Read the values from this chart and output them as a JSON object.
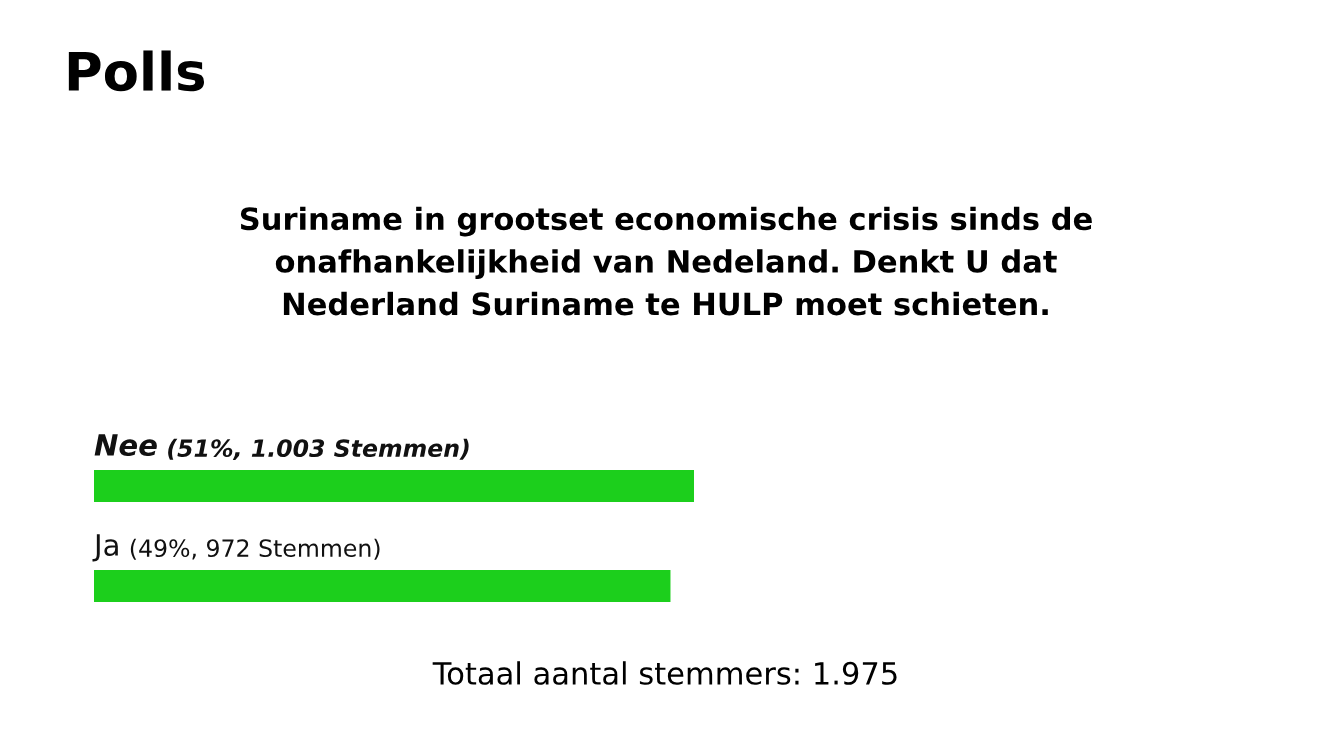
{
  "chart_data": {
    "type": "bar",
    "orientation": "horizontal",
    "title": "Polls",
    "subtitle": "Suriname in grootset economische crisis sinds de\nonafhankelijkheid van Nedeland. Denkt U dat\nNederland Suriname te HULP moet schieten.",
    "categories": [
      "Nee",
      "Ja"
    ],
    "values": [
      51,
      49
    ],
    "value_labels": [
      "(51%, 1.003 Stemmen)",
      "(49%, 972 Stemmen)"
    ],
    "color": "#1ccf1c",
    "annotations": [
      "Totaal aantal stemmers: 1.975"
    ]
  }
}
